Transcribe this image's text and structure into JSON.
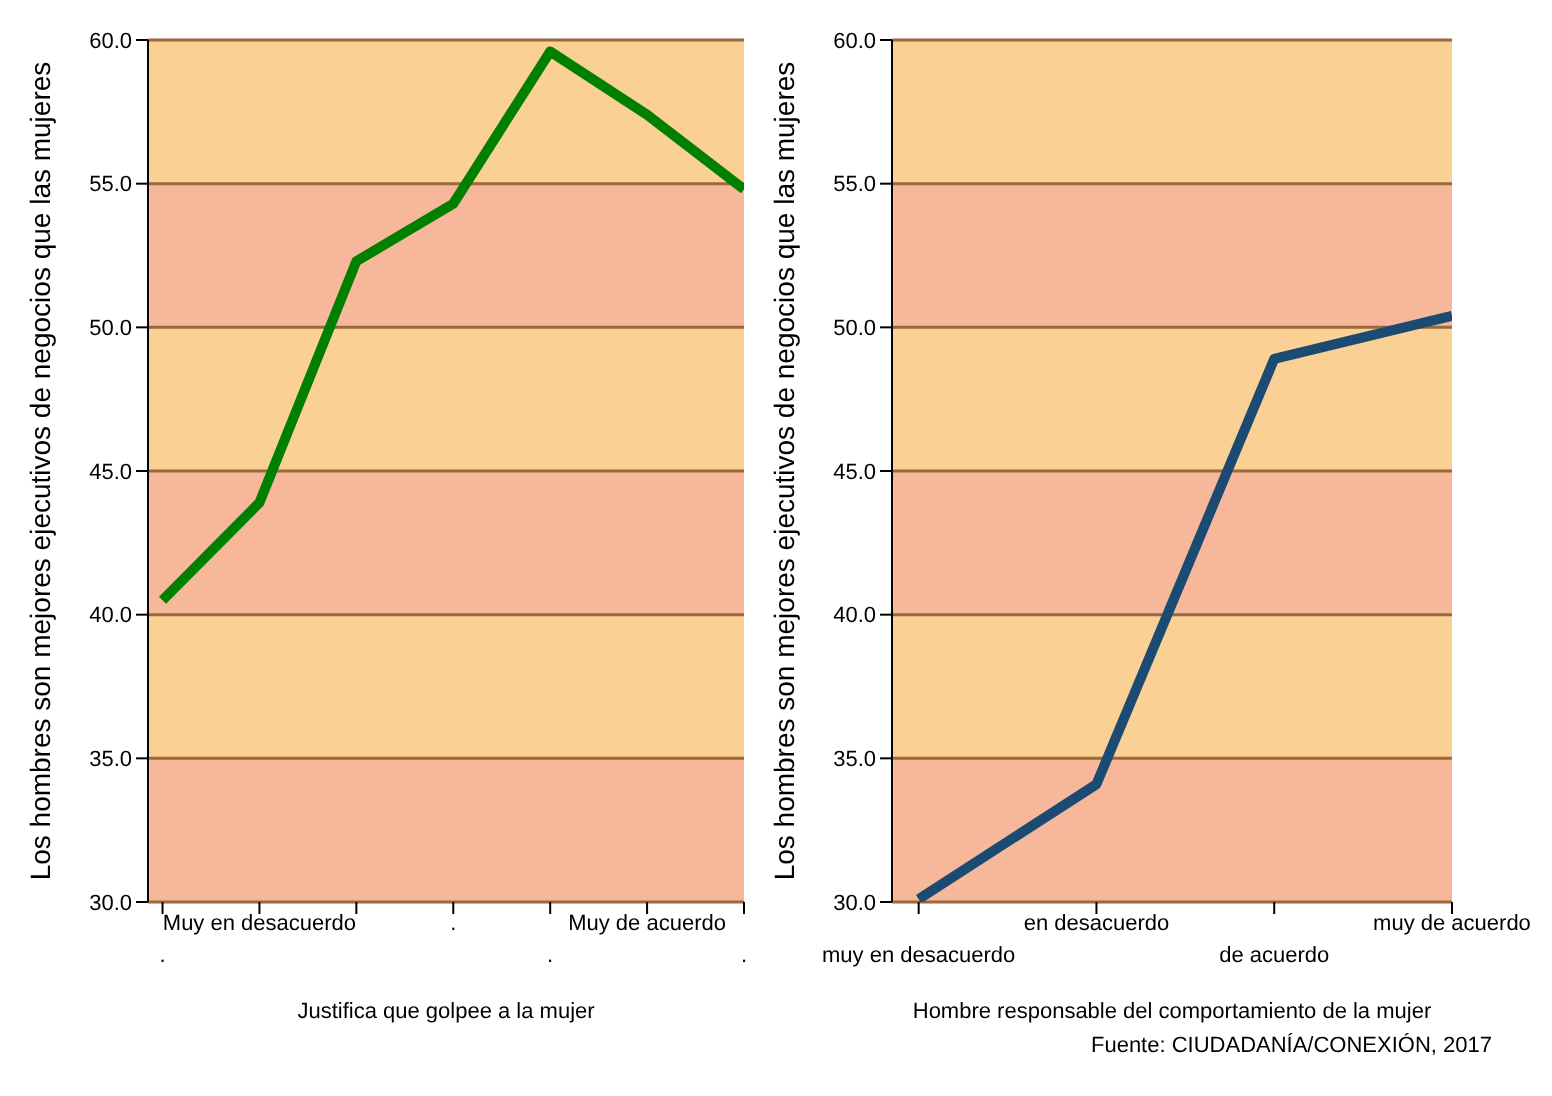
{
  "chart_data": [
    {
      "type": "line",
      "categories": [
        ".",
        "Muy en desacuerdo",
        null,
        ".",
        ".",
        "Muy de acuerdo",
        "."
      ],
      "series": [
        {
          "color": "#008000",
          "values": [
            40.5,
            43.9,
            52.3,
            54.3,
            59.6,
            57.4,
            54.8
          ]
        }
      ],
      "xlabel": "Justifica que golpee a la mujer",
      "ylabel": "Los hombres son mejores ejecutivos de negocios que las mujeres",
      "ylim": [
        30,
        60
      ],
      "yticks": [
        {
          "value": 30,
          "label": "30.0"
        },
        {
          "value": 35,
          "label": "35.0"
        },
        {
          "value": 40,
          "label": "40.0"
        },
        {
          "value": 45,
          "label": "45.0"
        },
        {
          "value": 50,
          "label": "50.0"
        },
        {
          "value": 55,
          "label": "55.0"
        },
        {
          "value": 60,
          "label": "60.0"
        }
      ],
      "grid": "y",
      "marker": "none",
      "line_style": "solid",
      "bands": [
        {
          "axis": "y",
          "from": 30,
          "to": 35,
          "color": "#f6b79a"
        },
        {
          "axis": "y",
          "from": 35,
          "to": 40,
          "color": "#fbd095"
        },
        {
          "axis": "y",
          "from": 40,
          "to": 45,
          "color": "#f6b79a"
        },
        {
          "axis": "y",
          "from": 45,
          "to": 50,
          "color": "#fbd095"
        },
        {
          "axis": "y",
          "from": 50,
          "to": 55,
          "color": "#f6b79a"
        },
        {
          "axis": "y",
          "from": 55,
          "to": 60,
          "color": "#fbd095"
        }
      ]
    },
    {
      "type": "line",
      "categories": [
        "muy en desacuerdo",
        "en desacuerdo",
        "de acuerdo",
        "muy de acuerdo"
      ],
      "series": [
        {
          "color": "#1b4a73",
          "values": [
            30.1,
            34.1,
            48.9,
            50.4
          ]
        }
      ],
      "xlabel": "Hombre responsable del comportamiento de la mujer",
      "ylabel": "Los hombres son mejores ejecutivos de negocios que las mujeres",
      "ylim": [
        30,
        60
      ],
      "yticks": [
        {
          "value": 30,
          "label": "30.0"
        },
        {
          "value": 35,
          "label": "35.0"
        },
        {
          "value": 40,
          "label": "40.0"
        },
        {
          "value": 45,
          "label": "45.0"
        },
        {
          "value": 50,
          "label": "50.0"
        },
        {
          "value": 55,
          "label": "55.0"
        },
        {
          "value": 60,
          "label": "60.0"
        }
      ],
      "grid": "y",
      "marker": "none",
      "line_style": "solid",
      "bands": [
        {
          "axis": "y",
          "from": 30,
          "to": 35,
          "color": "#f6b79a"
        },
        {
          "axis": "y",
          "from": 35,
          "to": 40,
          "color": "#fbd095"
        },
        {
          "axis": "y",
          "from": 40,
          "to": 45,
          "color": "#f6b79a"
        },
        {
          "axis": "y",
          "from": 45,
          "to": 50,
          "color": "#fbd095"
        },
        {
          "axis": "y",
          "from": 50,
          "to": 55,
          "color": "#f6b79a"
        },
        {
          "axis": "y",
          "from": 55,
          "to": 60,
          "color": "#fbd095"
        }
      ],
      "annotations": [
        "Fuente: CIUDADANÍA/CONEXIÓN, 2017"
      ]
    }
  ]
}
